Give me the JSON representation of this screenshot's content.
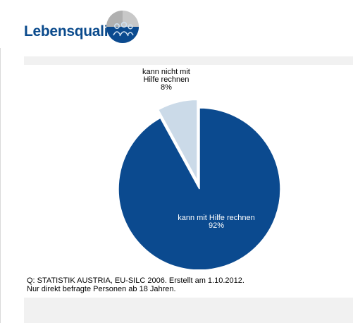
{
  "header": {
    "title": "Lebensqualität",
    "logo_icon": "quality-of-life-icon"
  },
  "chart_data": {
    "type": "pie",
    "start_angle_deg": 0,
    "slices": [
      {
        "label": "kann mit Hilfe rechnen",
        "value": 92,
        "value_label": "92%",
        "color": "#0b4a8f",
        "exploded": false
      },
      {
        "label": "kann nicht mit Hilfe rechnen",
        "label_lines": [
          "kann nicht mit",
          "Hilfe rechnen"
        ],
        "value": 8,
        "value_label": "8%",
        "color": "#cbdae8",
        "exploded": true
      }
    ]
  },
  "source": {
    "line1": "Q: STATISTIK AUSTRIA, EU-SILC 2006. Erstellt am 1.10.2012.",
    "line2": "Nur direkt befragte Personen ab 18 Jahren."
  },
  "colors": {
    "brand": "#0a4a8c",
    "band": "#f1f1f1"
  }
}
